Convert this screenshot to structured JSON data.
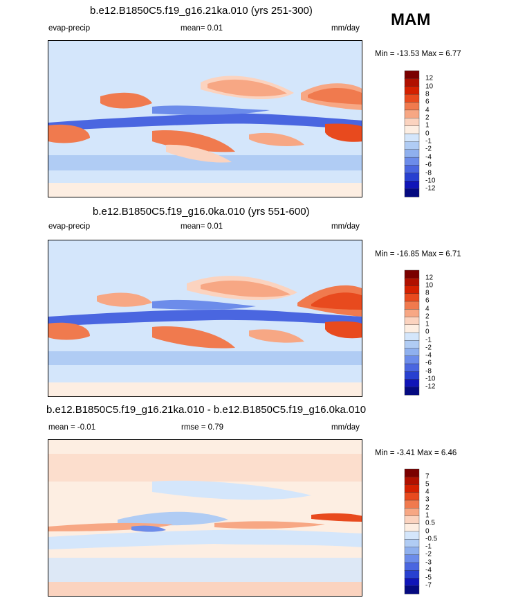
{
  "season": "MAM",
  "panels": [
    {
      "title": "b.e12.B1850C5.f19_g16.21ka.010 (yrs 251-300)",
      "left_label": "evap-precip",
      "center_label": "mean=  0.01",
      "units": "mm/day",
      "minmax": "Min = -13.53 Max =   6.77",
      "levels": [
        "12",
        "10",
        "8",
        "6",
        "4",
        "2",
        "1",
        "0",
        "-1",
        "-2",
        "-4",
        "-6",
        "-8",
        "-10",
        "-12"
      ]
    },
    {
      "title": "b.e12.B1850C5.f19_g16.0ka.010 (yrs 551-600)",
      "left_label": "evap-precip",
      "center_label": "mean=  0.01",
      "units": "mm/day",
      "minmax": "Min = -16.85 Max =   6.71",
      "levels": [
        "12",
        "10",
        "8",
        "6",
        "4",
        "2",
        "1",
        "0",
        "-1",
        "-2",
        "-4",
        "-6",
        "-8",
        "-10",
        "-12"
      ]
    },
    {
      "title": "b.e12.B1850C5.f19_g16.21ka.010 - b.e12.B1850C5.f19_g16.0ka.010",
      "left_label": "mean =  -0.01",
      "center_label": "rmse =  0.79",
      "units": "mm/day",
      "minmax": "Min =  -3.41 Max =   6.46",
      "levels": [
        "7",
        "5",
        "4",
        "3",
        "2",
        "1",
        "0.5",
        "0",
        "-0.5",
        "-1",
        "-2",
        "-3",
        "-4",
        "-5",
        "-7"
      ]
    }
  ],
  "chart_data": {
    "type": "heatmap",
    "variable": "evap-precip",
    "units": "mm/day",
    "season": "MAM",
    "colors": [
      "#7a0000",
      "#b01000",
      "#d42000",
      "#e84a1e",
      "#f07a4e",
      "#f7a784",
      "#fbd3bf",
      "#fdeee2",
      "#d4e6fb",
      "#b0ccf4",
      "#8fb0ee",
      "#6c8cea",
      "#4a66e0",
      "#2840d0",
      "#1015b8",
      "#050a80"
    ],
    "panels": [
      {
        "title": "b.e12.B1850C5.f19_g16.21ka.010 (yrs 251-300)",
        "mean": 0.01,
        "min": -13.53,
        "max": 6.77,
        "levels": [
          12,
          10,
          8,
          6,
          4,
          2,
          1,
          0,
          -1,
          -2,
          -4,
          -6,
          -8,
          -10,
          -12
        ]
      },
      {
        "title": "b.e12.B1850C5.f19_g16.0ka.010 (yrs 551-600)",
        "mean": 0.01,
        "min": -16.85,
        "max": 6.71,
        "levels": [
          12,
          10,
          8,
          6,
          4,
          2,
          1,
          0,
          -1,
          -2,
          -4,
          -6,
          -8,
          -10,
          -12
        ]
      },
      {
        "title": "b.e12.B1850C5.f19_g16.21ka.010 - b.e12.B1850C5.f19_g16.0ka.010",
        "mean": -0.01,
        "rmse": 0.79,
        "min": -3.41,
        "max": 6.46,
        "levels": [
          7,
          5,
          4,
          3,
          2,
          1,
          0.5,
          0,
          -0.5,
          -1,
          -2,
          -3,
          -4,
          -5,
          -7
        ]
      }
    ]
  }
}
